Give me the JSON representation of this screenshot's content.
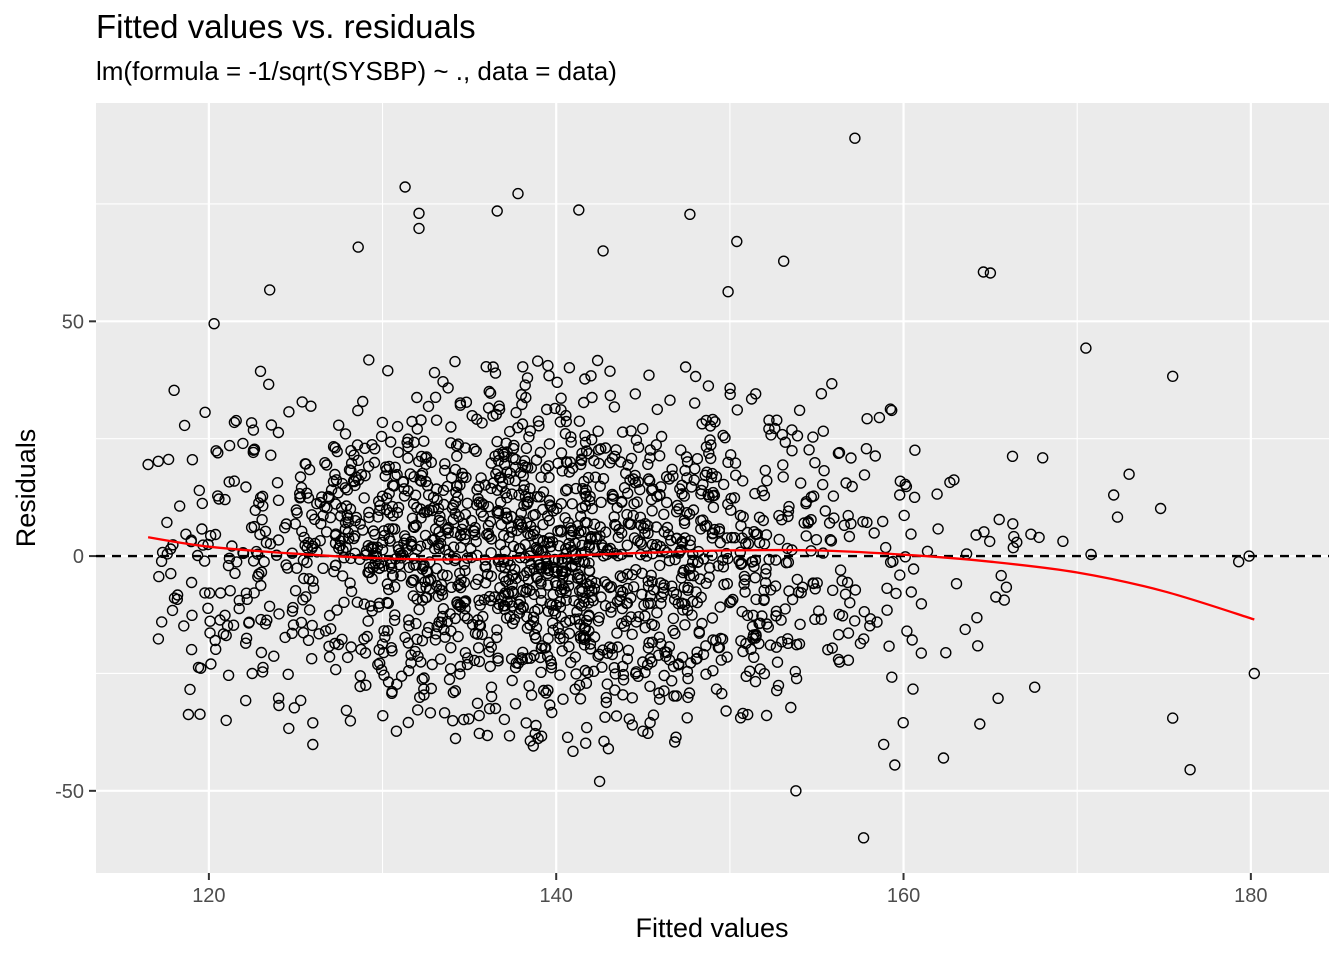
{
  "chart_data": {
    "type": "scatter",
    "title": "Fitted values vs. residuals",
    "subtitle": "lm(formula = -1/sqrt(SYSBP) ~ ., data = data)",
    "xlabel": "Fitted values",
    "ylabel": "Residuals",
    "xlim": [
      113.5,
      184.5
    ],
    "ylim": [
      -67.5,
      96.5
    ],
    "x_ticks": [
      120,
      140,
      160,
      180
    ],
    "x_tick_labels": [
      "120",
      "140",
      "160",
      "180"
    ],
    "y_ticks": [
      -50,
      0,
      50
    ],
    "y_tick_labels": [
      "-50",
      "0",
      "50"
    ],
    "grid": true,
    "reference_line": {
      "y": 0,
      "style": "dashed",
      "color": "#000000"
    },
    "smooth": {
      "color": "#ff0000",
      "x": [
        116.5,
        120,
        125,
        130,
        135,
        140,
        145,
        150,
        155,
        160,
        165,
        170,
        175,
        180.2
      ],
      "y": [
        4,
        2,
        0.5,
        -0.5,
        -0.7,
        0,
        0.7,
        1.2,
        1.2,
        0.3,
        -1.2,
        -3.5,
        -7.5,
        -13.5
      ]
    },
    "points": {
      "marker": "open-circle",
      "color": "#000000",
      "approx_count": 1900,
      "labeled_extremes": [
        [
          116.5,
          19.5
        ],
        [
          118.0,
          35.3
        ],
        [
          118.2,
          -8.3
        ],
        [
          120.3,
          49.5
        ],
        [
          121.0,
          -35.0
        ],
        [
          123.5,
          56.7
        ],
        [
          128.6,
          65.8
        ],
        [
          131.3,
          78.6
        ],
        [
          132.1,
          73.0
        ],
        [
          132.1,
          69.8
        ],
        [
          136.6,
          73.5
        ],
        [
          137.8,
          77.2
        ],
        [
          141.3,
          73.7
        ],
        [
          142.7,
          65.0
        ],
        [
          147.7,
          72.8
        ],
        [
          149.9,
          56.3
        ],
        [
          150.4,
          67.0
        ],
        [
          153.1,
          62.8
        ],
        [
          157.2,
          89.0
        ],
        [
          164.6,
          60.5
        ],
        [
          165.0,
          60.3
        ],
        [
          170.5,
          44.3
        ],
        [
          172.1,
          13.0
        ],
        [
          175.5,
          38.3
        ],
        [
          175.5,
          -34.5
        ],
        [
          176.5,
          -45.5
        ],
        [
          180.2,
          -25.0
        ],
        [
          179.9,
          0.0
        ],
        [
          179.3,
          -1.2
        ],
        [
          142.5,
          -48.0
        ],
        [
          153.8,
          -50.0
        ],
        [
          157.7,
          -60.0
        ],
        [
          159.5,
          -44.5
        ],
        [
          162.3,
          -43.0
        ],
        [
          130.8,
          -37.3
        ],
        [
          124.6,
          -36.7
        ],
        [
          119.4,
          -23.7
        ]
      ]
    }
  }
}
